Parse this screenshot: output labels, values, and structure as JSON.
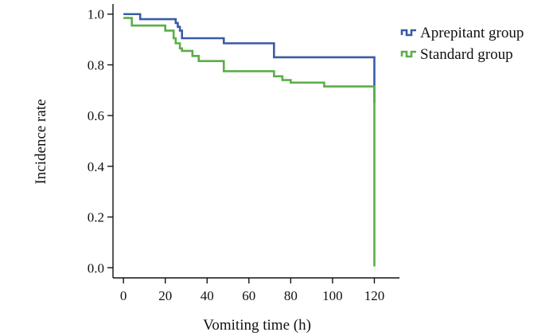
{
  "chart_data": {
    "type": "line",
    "step": true,
    "title": "",
    "xlabel": "Vomiting time (h)",
    "ylabel": "Incidence rate",
    "xlim": [
      -5,
      132
    ],
    "ylim": [
      -0.04,
      1.04
    ],
    "xticks": [
      0,
      20,
      40,
      60,
      80,
      100,
      120
    ],
    "yticks": [
      0.0,
      0.2,
      0.4,
      0.6,
      0.8,
      1.0
    ],
    "ytick_labels": [
      "0.0",
      "0.2",
      "0.4",
      "0.6",
      "0.8",
      "1.0"
    ],
    "legend": "right",
    "grid": false,
    "series": [
      {
        "name": "Aprepitant group",
        "color": "#3a5ba6",
        "x": [
          0,
          8,
          25,
          26,
          27,
          28,
          48,
          72,
          120,
          120
        ],
        "y": [
          1.0,
          0.98,
          0.965,
          0.95,
          0.935,
          0.905,
          0.885,
          0.83,
          0.83,
          0.65
        ]
      },
      {
        "name": "Standard group",
        "color": "#5aae48",
        "x": [
          0,
          4,
          20,
          24,
          25,
          27,
          28,
          33,
          36,
          48,
          72,
          76,
          80,
          96,
          120,
          120,
          120
        ],
        "y": [
          0.985,
          0.955,
          0.935,
          0.905,
          0.885,
          0.865,
          0.855,
          0.835,
          0.815,
          0.775,
          0.755,
          0.74,
          0.73,
          0.715,
          0.715,
          0.66,
          0.005
        ]
      }
    ]
  }
}
